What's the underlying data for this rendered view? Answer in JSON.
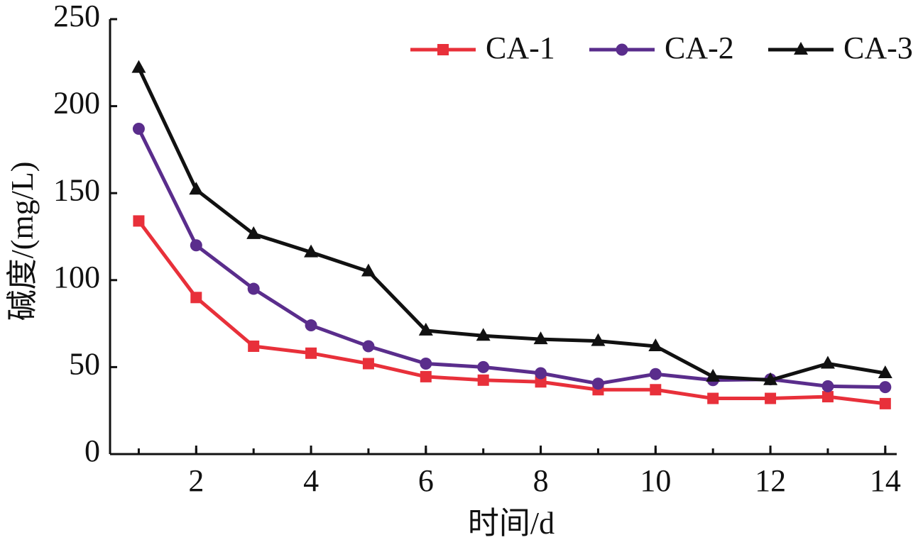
{
  "chart_data": {
    "type": "line",
    "x_label": "时间/d",
    "y_label": "碱度/(mg/L)",
    "x": [
      1,
      2,
      3,
      4,
      5,
      6,
      7,
      8,
      9,
      10,
      11,
      12,
      13,
      14
    ],
    "series": [
      {
        "name": "CA-1",
        "color": "#e8303a",
        "marker": "square",
        "values": [
          134,
          90,
          62,
          58,
          52,
          44.5,
          42.5,
          41.5,
          37,
          37,
          32,
          32,
          33,
          29
        ]
      },
      {
        "name": "CA-2",
        "color": "#5a2d8c",
        "marker": "circle",
        "values": [
          187,
          120,
          95,
          74,
          62,
          52,
          50,
          46.5,
          40.5,
          46,
          42.5,
          43,
          39,
          38.5
        ]
      },
      {
        "name": "CA-3",
        "color": "#111111",
        "marker": "triangle",
        "values": [
          222,
          152,
          126.5,
          116,
          105,
          71,
          68,
          66,
          65,
          62,
          44.5,
          42.5,
          52,
          46.5
        ]
      }
    ],
    "xlim": [
      0.5,
      14.2
    ],
    "xticks": [
      2,
      4,
      6,
      8,
      10,
      12,
      14
    ],
    "ylim": [
      0,
      250
    ],
    "yticks": [
      0,
      50,
      100,
      150,
      200,
      250
    ],
    "grid": false,
    "legend": "top-right"
  }
}
